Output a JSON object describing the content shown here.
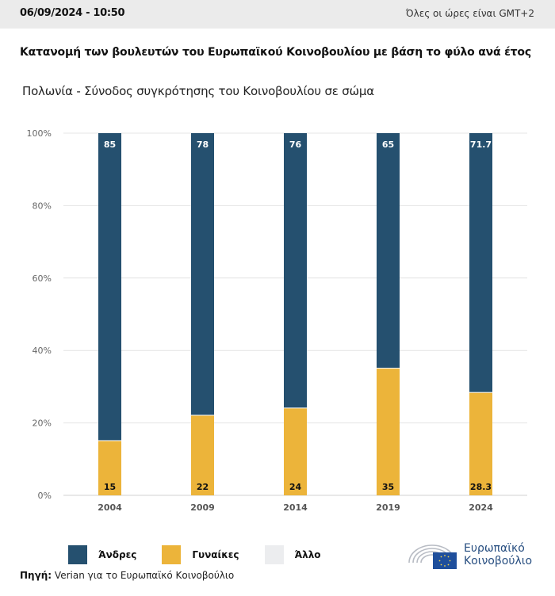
{
  "header": {
    "datetime": "06/09/2024 - 10:50",
    "timezone_note": "Όλες οι ώρες είναι GMT+2"
  },
  "title": "Κατανομή των βουλευτών του Ευρωπαϊκού Κοινοβουλίου με βάση το φύλο ανά έτος",
  "subtitle": "Πολωνία - Σύνοδος συγκρότησης του Κοινοβουλίου σε σώμα",
  "colors": {
    "men": "#25506f",
    "women": "#ecb43a",
    "other": "#ecedef",
    "grid": "#e4e4e4"
  },
  "chart_data": {
    "type": "bar",
    "stacked": true,
    "categories": [
      "2004",
      "2009",
      "2014",
      "2019",
      "2024"
    ],
    "series": [
      {
        "name": "Γυναίκες",
        "values": [
          15,
          22,
          24,
          35,
          28.3
        ]
      },
      {
        "name": "Άνδρες",
        "values": [
          85,
          78,
          76,
          65,
          71.7
        ]
      },
      {
        "name": "Άλλο",
        "values": [
          0,
          0,
          0,
          0,
          0
        ]
      }
    ],
    "data_labels": {
      "men": [
        "85",
        "78",
        "76",
        "65",
        "71.7"
      ],
      "women": [
        "15",
        "22",
        "24",
        "35",
        "28.3"
      ]
    },
    "title": "Κατανομή των βουλευτών του Ευρωπαϊκού Κοινοβουλίου με βάση το φύλο ανά έτος",
    "subtitle": "Πολωνία - Σύνοδος συγκρότησης του Κοινοβουλίου σε σώμα",
    "xlabel": "",
    "ylabel": "",
    "ylim": [
      0,
      100
    ],
    "yticks": [
      "0%",
      "20%",
      "40%",
      "60%",
      "80%",
      "100%"
    ],
    "ytick_values": [
      0,
      20,
      40,
      60,
      80,
      100
    ],
    "grid": true,
    "legend_position": "bottom-left"
  },
  "legend": [
    {
      "label": "Άνδρες"
    },
    {
      "label": "Γυναίκες"
    },
    {
      "label": "Άλλο"
    }
  ],
  "source": {
    "label": "Πηγή:",
    "text": " Verian για το Ευρωπαϊκό Κοινοβούλιο"
  },
  "logo": {
    "line1": "Ευρωπαϊκό",
    "line2": "Κοινοβούλιο"
  }
}
